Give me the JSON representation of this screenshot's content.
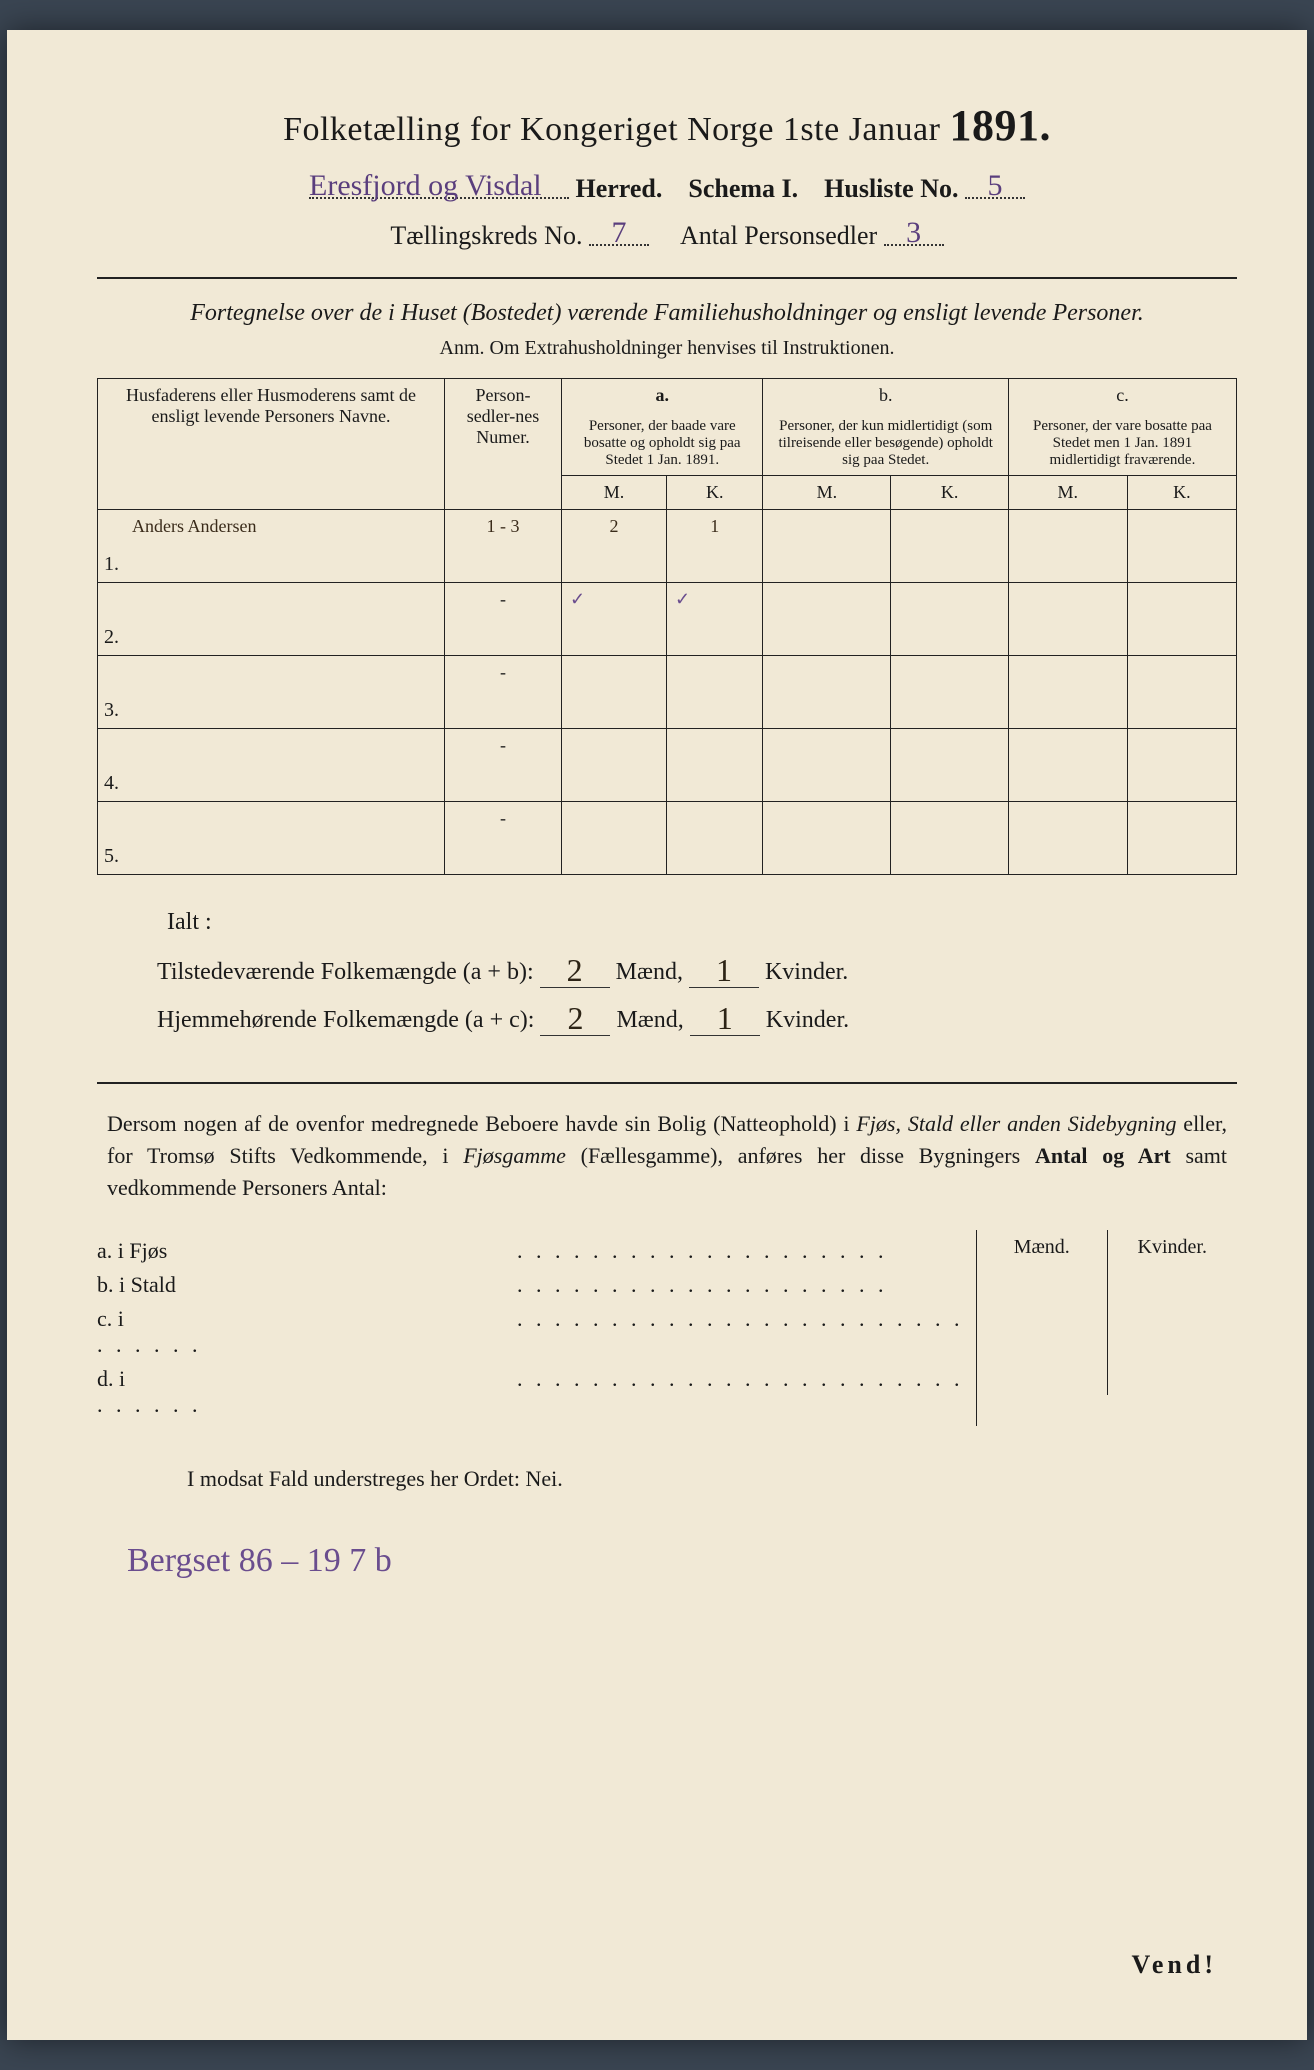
{
  "title": {
    "text": "Folketælling for Kongeriget Norge 1ste Januar",
    "year": "1891."
  },
  "header": {
    "herred_fill": "Eresfjord og Visdal",
    "herred_label": "Herred.",
    "schema_label": "Schema I.",
    "husliste_label": "Husliste No.",
    "husliste_no": "5",
    "kreds_label": "Tællingskreds No.",
    "kreds_no": "7",
    "antal_label": "Antal Personsedler",
    "antal_no": "3"
  },
  "fortegnelse": {
    "line": "Fortegnelse over de i Huset (Bostedet) værende Familiehusholdninger og ensligt levende Personer.",
    "anm": "Anm.  Om Extrahusholdninger henvises til Instruktionen."
  },
  "table": {
    "col_name": "Husfaderens eller Husmoderens samt de ensligt levende Personers Navne.",
    "col_num": "Person-sedler-nes Numer.",
    "col_a_label": "a.",
    "col_a": "Personer, der baade vare bosatte og opholdt sig paa Stedet 1 Jan. 1891.",
    "col_b_label": "b.",
    "col_b": "Personer, der kun midlertidigt (som tilreisende eller besøgende) opholdt sig paa Stedet.",
    "col_c_label": "c.",
    "col_c": "Personer, der vare bosatte paa Stedet men 1 Jan. 1891 midlertidigt fraværende.",
    "mk_m": "M.",
    "mk_k": "K.",
    "rows": [
      {
        "n": "1.",
        "name": "Anders Andersen",
        "num": "1 - 3",
        "a_m": "2",
        "a_k": "1",
        "b_m": "",
        "b_k": "",
        "c_m": "",
        "c_k": ""
      },
      {
        "n": "2.",
        "name": "",
        "num": "-",
        "a_m": "✓",
        "a_k": "✓",
        "b_m": "",
        "b_k": "",
        "c_m": "",
        "c_k": ""
      },
      {
        "n": "3.",
        "name": "",
        "num": "-",
        "a_m": "",
        "a_k": "",
        "b_m": "",
        "b_k": "",
        "c_m": "",
        "c_k": ""
      },
      {
        "n": "4.",
        "name": "",
        "num": "-",
        "a_m": "",
        "a_k": "",
        "b_m": "",
        "b_k": "",
        "c_m": "",
        "c_k": ""
      },
      {
        "n": "5.",
        "name": "",
        "num": "-",
        "a_m": "",
        "a_k": "",
        "b_m": "",
        "b_k": "",
        "c_m": "",
        "c_k": ""
      }
    ]
  },
  "summary": {
    "ialt": "Ialt :",
    "line1_label": "Tilstedeværende Folkemængde (a + b):",
    "line1_m": "2",
    "line1_k": "1",
    "line2_label": "Hjemmehørende Folkemængde (a + c):",
    "line2_m": "2",
    "line2_k": "1",
    "maend": "Mænd,",
    "kvinder": "Kvinder."
  },
  "dersom": "Dersom nogen af de ovenfor medregnede Beboere havde sin Bolig (Natteophold) i Fjøs, Stald eller anden Sidebygning eller, for Tromsø Stifts Vedkommende, i Fjøsgamme (Fællesgamme), anføres her disse Bygningers Antal og Art samt vedkommende Personers Antal:",
  "mini": {
    "maend": "Mænd.",
    "kvinder": "Kvinder.",
    "rows": [
      {
        "label": "a.  i      Fjøs"
      },
      {
        "label": "b.  i      Stald"
      },
      {
        "label": "c.  i"
      },
      {
        "label": "d.  i"
      }
    ]
  },
  "nei": "I modsat Fald understreges her Ordet: Nei.",
  "bottom_hand": "Bergset 86 – 19 7 b",
  "vend": "Vend!"
}
